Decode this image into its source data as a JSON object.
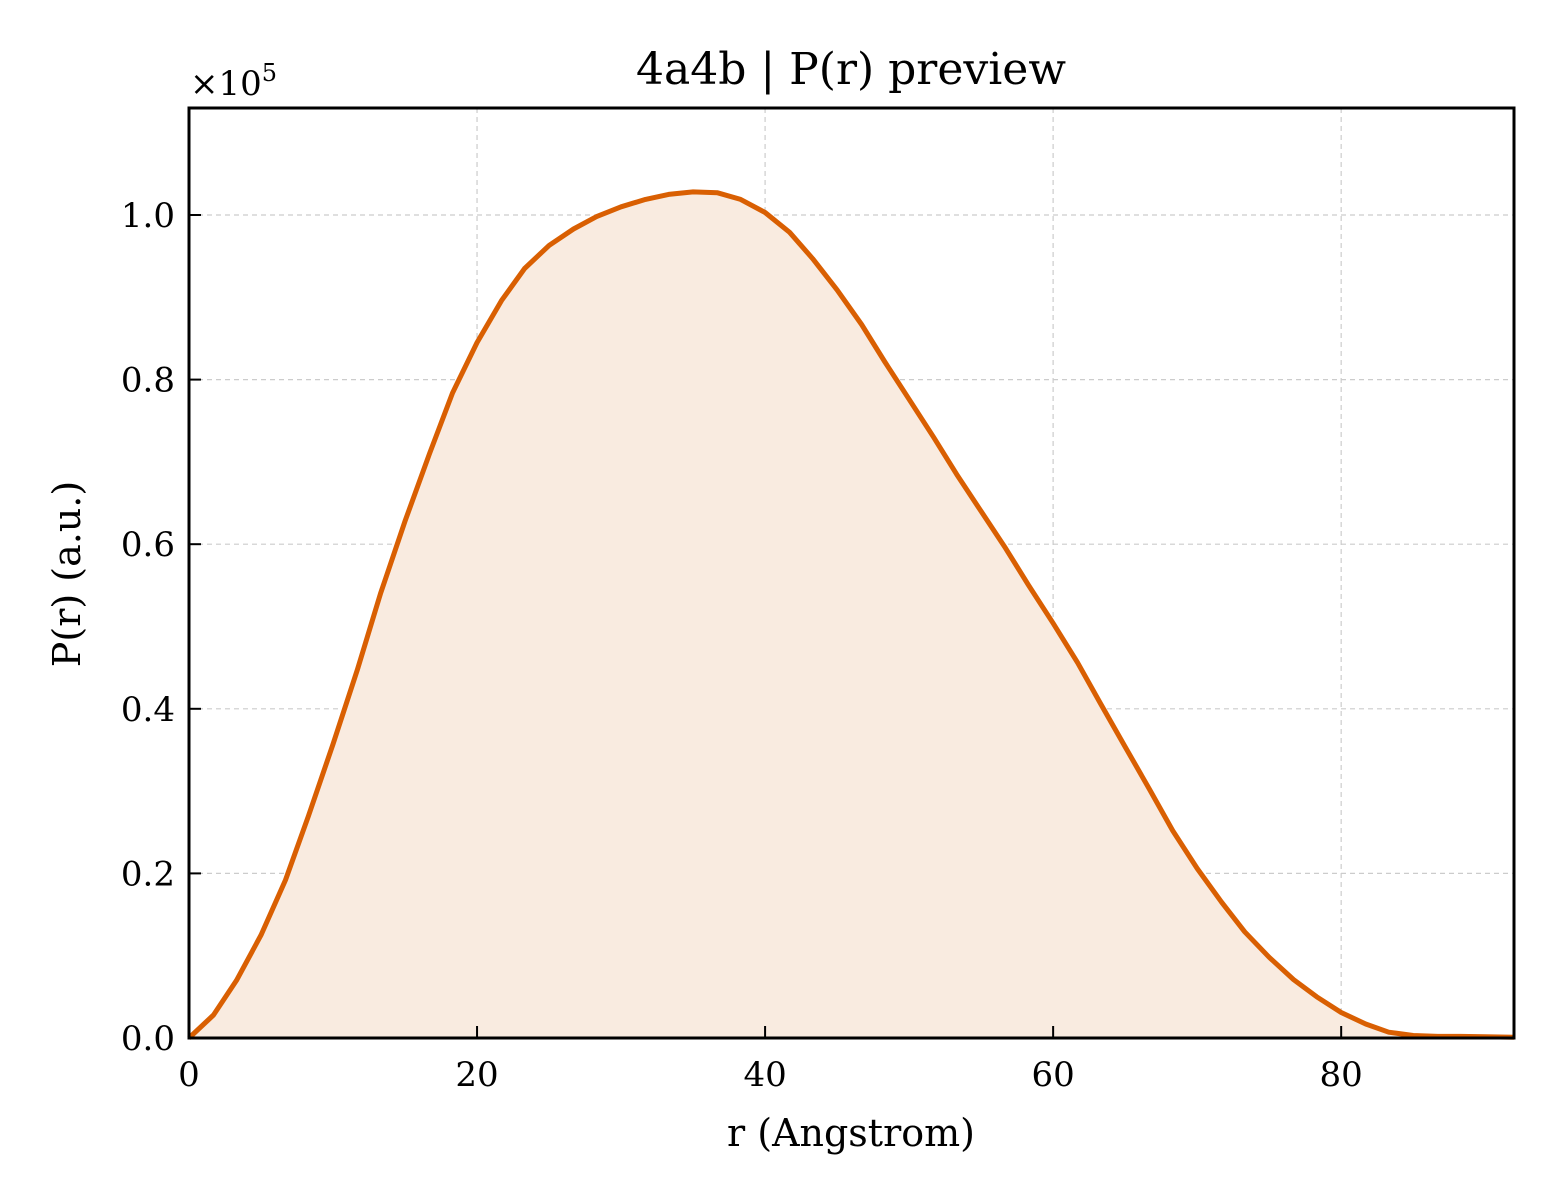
{
  "chart_data": {
    "type": "area",
    "title": "4a4b | P(r) preview",
    "xlabel": "r (Angstrom)",
    "ylabel": "P(r) (a.u.)",
    "y_multiplier": "×10",
    "y_multiplier_exp": "5",
    "xlim": [
      0,
      92
    ],
    "ylim": [
      0,
      1.13
    ],
    "xticks": [
      0,
      20,
      40,
      60,
      80
    ],
    "xtick_labels": [
      "0",
      "20",
      "40",
      "60",
      "80"
    ],
    "yticks": [
      0,
      0.2,
      0.4,
      0.6,
      0.8,
      1.0
    ],
    "ytick_labels": [
      "0.0",
      "0.2",
      "0.4",
      "0.6",
      "0.8",
      "1.0"
    ],
    "grid": true,
    "line_color": "#d95f02",
    "fill_color": "#f9ebe0",
    "series": [
      {
        "x": [
          0,
          1.7,
          3.3,
          5.0,
          6.7,
          8.3,
          10.0,
          11.7,
          13.3,
          15.0,
          16.7,
          18.3,
          20.0,
          21.7,
          23.3,
          25.0,
          26.7,
          28.3,
          30.0,
          31.7,
          33.3,
          35.0,
          36.7,
          38.3,
          40.0,
          41.7,
          43.3,
          45.0,
          46.7,
          48.3,
          50.0,
          51.7,
          53.3,
          55.0,
          56.7,
          58.3,
          60.0,
          61.7,
          63.3,
          65.0,
          66.7,
          68.3,
          70.0,
          71.7,
          73.3,
          75.0,
          76.7,
          78.3,
          80.0,
          81.7,
          83.3,
          85.0,
          86.7,
          88.3,
          90.0,
          92.0
        ],
        "y": [
          0.0,
          0.028,
          0.07,
          0.125,
          0.192,
          0.27,
          0.357,
          0.448,
          0.54,
          0.628,
          0.71,
          0.784,
          0.845,
          0.896,
          0.935,
          0.963,
          0.983,
          0.998,
          1.01,
          1.019,
          1.025,
          1.028,
          1.027,
          1.019,
          1.003,
          0.979,
          0.947,
          0.909,
          0.867,
          0.822,
          0.776,
          0.73,
          0.685,
          0.64,
          0.595,
          0.55,
          0.504,
          0.456,
          0.406,
          0.354,
          0.302,
          0.252,
          0.206,
          0.165,
          0.129,
          0.098,
          0.071,
          0.05,
          0.031,
          0.017,
          0.007,
          0.003,
          0.002,
          0.002,
          0.0015,
          0.001
        ]
      }
    ]
  }
}
